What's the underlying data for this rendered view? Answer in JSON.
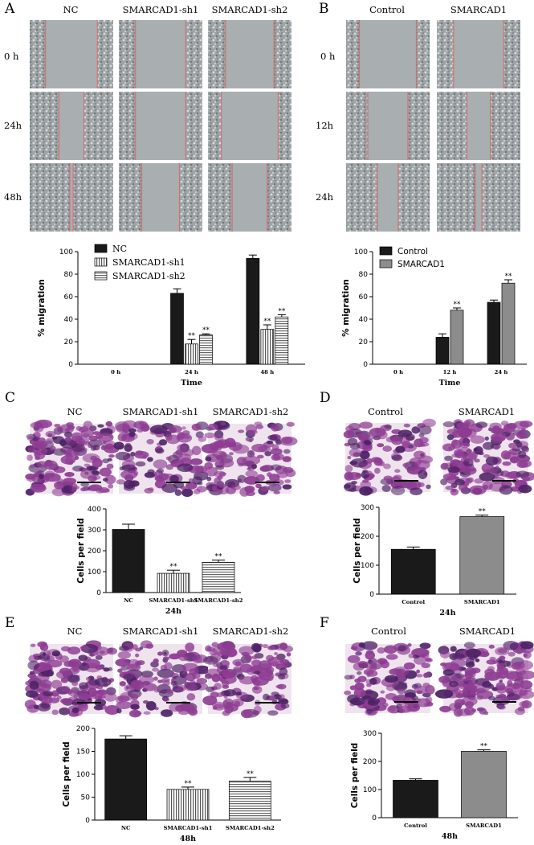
{
  "colors": {
    "black": "#1a1a1a",
    "gray": "#8c8c8c",
    "stripe": "#c8c8c8",
    "wound": "#a9aeb0",
    "cellfield": "#9a9fa2",
    "woundline": "#d86a6a",
    "stain_bg": "#efe4ee",
    "stain_cell": "#8e3c92",
    "stain_dark": "#4e2266"
  },
  "panels": {
    "A": {
      "letter": "A",
      "columns": [
        "NC",
        "SMARCAD1-sh1",
        "SMARCAD1-sh2"
      ],
      "rows": [
        "0 h",
        "24h",
        "48h"
      ],
      "wound_widths": [
        [
          0.62,
          0.6,
          0.58
        ],
        [
          0.3,
          0.6,
          0.68
        ],
        [
          0.04,
          0.45,
          0.42
        ]
      ]
    },
    "B": {
      "letter": "B",
      "columns": [
        "Control",
        "SMARCAD1"
      ],
      "rows": [
        "0 h",
        "12h",
        "24h"
      ],
      "wound_widths": [
        [
          0.68,
          0.6
        ],
        [
          0.48,
          0.28
        ],
        [
          0.25,
          0.08
        ]
      ]
    },
    "C": {
      "letter": "C",
      "columns": [
        "NC",
        "SMARCAD1-sh1",
        "SMARCAD1-sh2"
      ],
      "density": [
        0.85,
        0.45,
        0.5
      ]
    },
    "D": {
      "letter": "D",
      "columns": [
        "Control",
        "SMARCAD1"
      ],
      "density": [
        0.5,
        0.8
      ]
    },
    "E": {
      "letter": "E",
      "columns": [
        "NC",
        "SMARCAD1-sh1",
        "SMARCAD1-sh2"
      ],
      "density": [
        0.8,
        0.45,
        0.6
      ]
    },
    "F": {
      "letter": "F",
      "columns": [
        "Control",
        "SMARCAD1"
      ],
      "density": [
        0.55,
        0.85
      ]
    }
  },
  "chart_data": [
    {
      "panel": "A",
      "type": "bar",
      "categories": [
        "0 h",
        "24 h",
        "48 h"
      ],
      "series": [
        {
          "name": "NC",
          "values": [
            0,
            63,
            94
          ],
          "errors": [
            0,
            4,
            3
          ],
          "stars": [
            "",
            "",
            ""
          ],
          "fill": "black"
        },
        {
          "name": "SMARCAD1-sh1",
          "values": [
            0,
            18,
            31
          ],
          "errors": [
            0,
            4,
            4
          ],
          "stars": [
            "",
            "**",
            "**"
          ],
          "fill": "vstripe"
        },
        {
          "name": "SMARCAD1-sh2",
          "values": [
            0,
            26,
            42
          ],
          "errors": [
            0,
            1,
            2
          ],
          "stars": [
            "",
            "**",
            "**"
          ],
          "fill": "hstripe"
        }
      ],
      "ylabel": "% migration",
      "xlabel": "Time",
      "ylim": [
        0,
        100
      ],
      "yticks": [
        0,
        20,
        40,
        60,
        80,
        100
      ],
      "legend": "top-left"
    },
    {
      "panel": "B",
      "type": "bar",
      "categories": [
        "0 h",
        "12 h",
        "24 h"
      ],
      "series": [
        {
          "name": "Control",
          "values": [
            0,
            24,
            55
          ],
          "errors": [
            0,
            3,
            2
          ],
          "stars": [
            "",
            "",
            ""
          ],
          "fill": "black"
        },
        {
          "name": "SMARCAD1",
          "values": [
            0,
            48,
            72
          ],
          "errors": [
            0,
            2,
            3
          ],
          "stars": [
            "",
            "**",
            "**"
          ],
          "fill": "gray"
        }
      ],
      "ylabel": "% migration",
      "xlabel": "Time",
      "ylim": [
        0,
        100
      ],
      "yticks": [
        0,
        20,
        40,
        60,
        80,
        100
      ],
      "legend": "top-left"
    },
    {
      "panel": "C",
      "type": "bar",
      "categories": [
        "NC",
        "SMARCAD1-sh1",
        "SMARCAD1-sh2"
      ],
      "values": [
        302,
        92,
        145
      ],
      "errors": [
        25,
        15,
        10
      ],
      "stars": [
        "",
        "**",
        "**"
      ],
      "fills": [
        "black",
        "vstripe",
        "hstripe"
      ],
      "ylabel": "Cells per field",
      "xlabel": "24h",
      "ylim": [
        0,
        400
      ],
      "yticks": [
        0,
        100,
        200,
        300,
        400
      ]
    },
    {
      "panel": "D",
      "type": "bar",
      "categories": [
        "Control",
        "SMARCAD1"
      ],
      "values": [
        155,
        268
      ],
      "errors": [
        8,
        5
      ],
      "stars": [
        "",
        "**"
      ],
      "fills": [
        "black",
        "gray"
      ],
      "ylabel": "Cells per field",
      "xlabel": "24h",
      "ylim": [
        0,
        300
      ],
      "yticks": [
        0,
        100,
        200,
        300
      ]
    },
    {
      "panel": "E",
      "type": "bar",
      "categories": [
        "NC",
        "SMARCAD1-sh1",
        "SMARCAD1-sh2"
      ],
      "values": [
        177,
        67,
        85
      ],
      "errors": [
        7,
        5,
        8
      ],
      "stars": [
        "",
        "**",
        "**"
      ],
      "fills": [
        "black",
        "vstripe",
        "hstripe"
      ],
      "ylabel": "Cells per field",
      "xlabel": "48h",
      "ylim": [
        0,
        200
      ],
      "yticks": [
        0,
        50,
        100,
        150,
        200
      ]
    },
    {
      "panel": "F",
      "type": "bar",
      "categories": [
        "Control",
        "SMARCAD1"
      ],
      "values": [
        133,
        236
      ],
      "errors": [
        5,
        5
      ],
      "stars": [
        "",
        "**"
      ],
      "fills": [
        "black",
        "gray"
      ],
      "ylabel": "Cells per field",
      "xlabel": "48h",
      "ylim": [
        0,
        300
      ],
      "yticks": [
        0,
        100,
        200,
        300
      ]
    }
  ]
}
